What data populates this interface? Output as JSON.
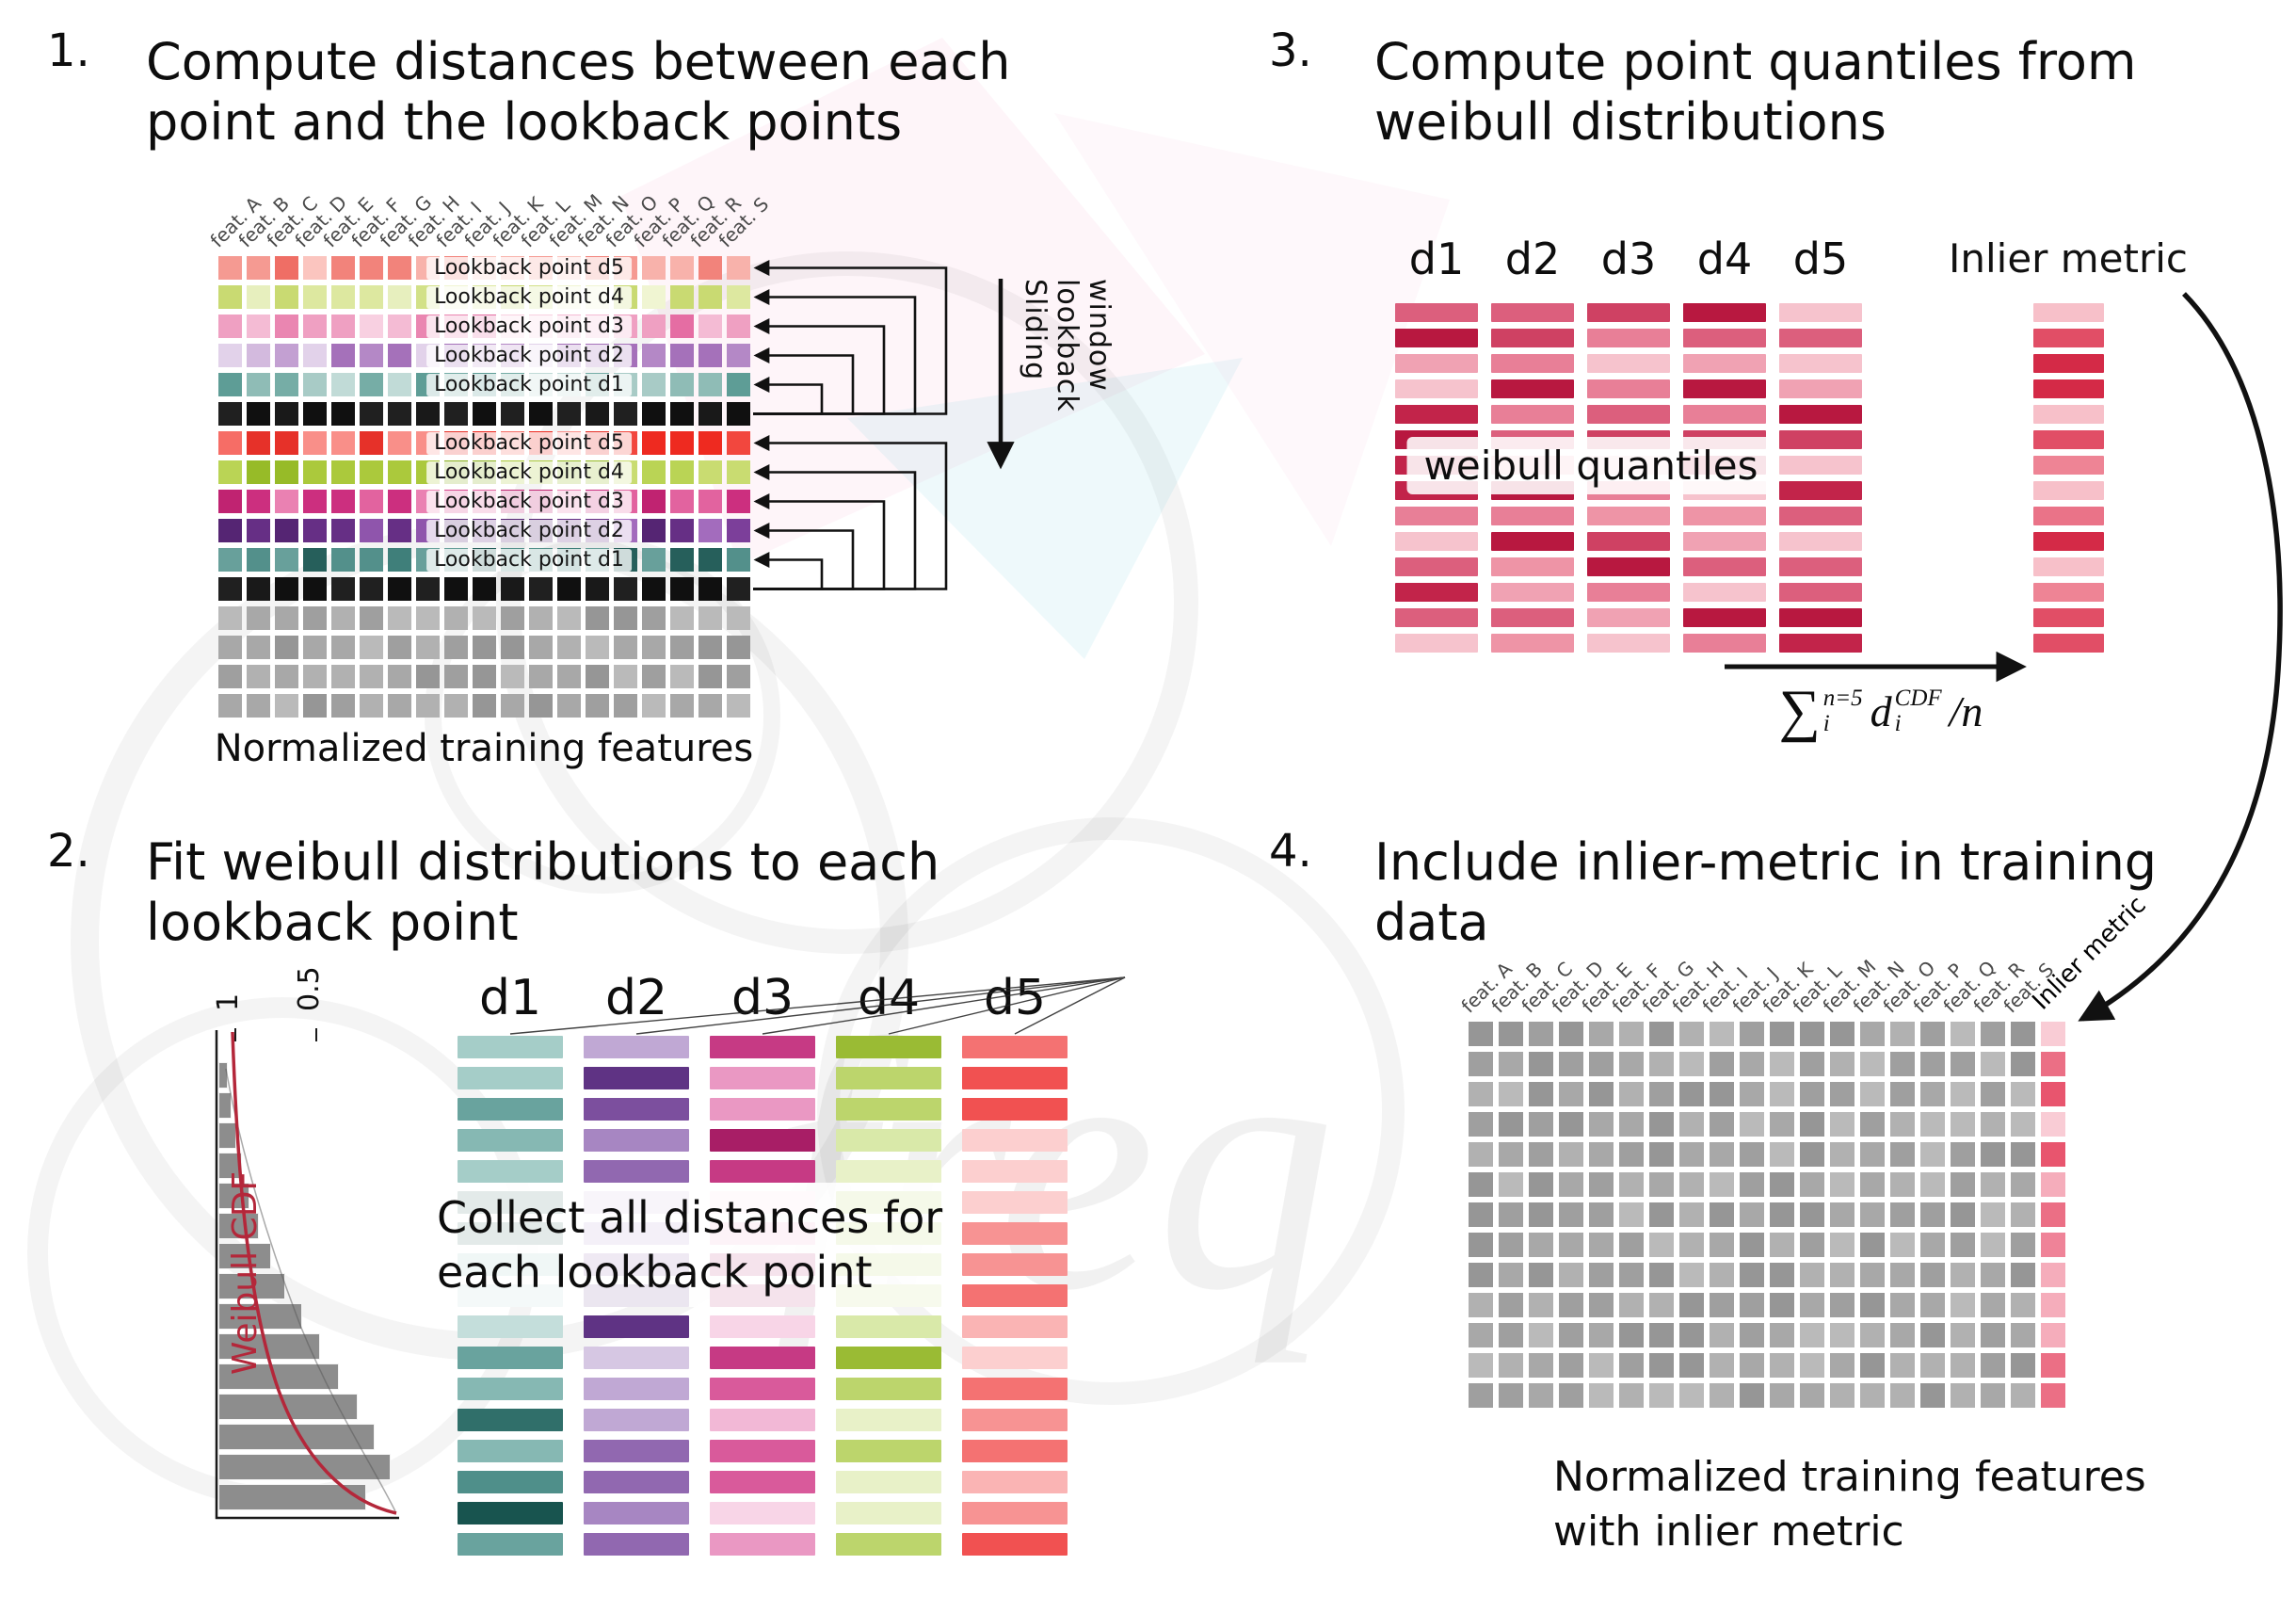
{
  "watermark": {
    "text": "freq"
  },
  "features": [
    "feat. A",
    "feat. B",
    "feat. C",
    "feat. D",
    "feat. E",
    "feat. F",
    "feat. G",
    "feat. H",
    "feat. I",
    "feat. J",
    "feat. K",
    "feat. L",
    "feat. M",
    "feat. N",
    "feat. O",
    "feat. P",
    "feat. Q",
    "feat. R",
    "feat. S"
  ],
  "lookback_labels": {
    "d1": "Lookback point d1",
    "d2": "Lookback point d2",
    "d3": "Lookback point d3",
    "d4": "Lookback point d4",
    "d5": "Lookback point d5"
  },
  "palettes": {
    "d5_light": [
      "#f59a92",
      "#f8b2ab",
      "#f2837b",
      "#fbc5bf",
      "#ef6e65"
    ],
    "d4_light": [
      "#dde8a0",
      "#e7efbe",
      "#d2e188",
      "#f0f5d2",
      "#c9da72"
    ],
    "d3_light": [
      "#efa0c2",
      "#f4bbd4",
      "#ea86b1",
      "#f8d0e1",
      "#e56da3"
    ],
    "d2_light": [
      "#c3a0d2",
      "#d3bade",
      "#b488c6",
      "#e2d2ea",
      "#a571ba"
    ],
    "d1_light": [
      "#8fbcb6",
      "#a8cbc6",
      "#76ada6",
      "#c1dbd7",
      "#5e9d96"
    ],
    "d5_strong": [
      "#f2473e",
      "#f66d66",
      "#ee2a20",
      "#f98f89",
      "#e63129"
    ],
    "d4_strong": [
      "#abc93c",
      "#bad455",
      "#97bb28",
      "#c9dc71",
      "#88af1f"
    ],
    "d3_strong": [
      "#d9468e",
      "#e2639f",
      "#cc2f7f",
      "#ea81b2",
      "#c02371"
    ],
    "d2_strong": [
      "#7c3f9a",
      "#8f55ac",
      "#662f85",
      "#a36cbd",
      "#552573"
    ],
    "d1_strong": [
      "#3f7f7a",
      "#53908b",
      "#2e6e69",
      "#68a09b",
      "#265f5b"
    ],
    "black": [
      "#191919",
      "#101010",
      "#202020"
    ],
    "gray": [
      "#a8a8a8",
      "#9f9f9f",
      "#b1b1b1",
      "#969696",
      "#bababa"
    ],
    "quantile_red": [
      "#c2244a",
      "#cf4163",
      "#dc5f7d",
      "#e87f97",
      "#f0a2b3",
      "#f6c3cd",
      "#b81840",
      "#ee94a6"
    ],
    "inlier_red": [
      "#e14e66",
      "#ea7388",
      "#f29aa9",
      "#d42a47",
      "#f7c0c9",
      "#ee8495"
    ],
    "p2_d1": [
      "#4f8f8a",
      "#69a39e",
      "#86b8b3",
      "#a5cdc8",
      "#306f6a",
      "#c4dedb",
      "#18544f"
    ],
    "p2_d2": [
      "#7c4f9e",
      "#9168b0",
      "#a786c2",
      "#c0a8d4",
      "#5f3384",
      "#d6c7e3"
    ],
    "p2_d3": [
      "#d95a9b",
      "#e279af",
      "#ea98c3",
      "#f2b8d6",
      "#c63a84",
      "#f8d5e7",
      "#a81e66"
    ],
    "p2_d4": [
      "#aecb4e",
      "#bcd56c",
      "#cadf8a",
      "#d9e9a9",
      "#9abb34",
      "#e8f1c8"
    ],
    "p2_d5": [
      "#f15151",
      "#f47272",
      "#f79393",
      "#fab4b4",
      "#ec3030",
      "#fccfcf",
      "#e01111"
    ],
    "p4_inlier": [
      "#e8556e",
      "#ef8398",
      "#f5adbb",
      "#d22c4a",
      "#f9ccd5",
      "#eb6f85"
    ]
  },
  "panel1": {
    "number": "1.",
    "title": [
      "Compute distances between each",
      "point and the lookback points"
    ],
    "sliding": [
      "Sliding",
      "lookback",
      "window"
    ],
    "caption": "Normalized training features",
    "row_order": [
      "d5_light",
      "d4_light",
      "d3_light",
      "d2_light",
      "d1_light",
      "black",
      "d5_strong",
      "d4_strong",
      "d3_strong",
      "d2_strong",
      "d1_strong",
      "black",
      "gray",
      "gray",
      "gray",
      "gray"
    ],
    "labeled_rows": {
      "0": "d5",
      "1": "d4",
      "2": "d3",
      "3": "d2",
      "4": "d1",
      "6": "d5",
      "7": "d4",
      "8": "d3",
      "9": "d2",
      "10": "d1"
    }
  },
  "panel2": {
    "number": "2.",
    "title": [
      "Fit weibull distributions to each",
      "lookback point"
    ],
    "columns": [
      "d1",
      "d2",
      "d3",
      "d4",
      "d5"
    ],
    "overlay": [
      "Collect all distances for",
      "each lookback point"
    ],
    "plot": {
      "ylabel": "Weibull CDF",
      "ticks": [
        "1",
        "0.5"
      ],
      "hist": [
        10,
        14,
        19,
        25,
        33,
        43,
        56,
        71,
        89,
        108,
        128,
        148,
        166,
        183,
        157
      ]
    }
  },
  "panel3": {
    "number": "3.",
    "title": [
      "Compute point quantiles from",
      "weibull distributions"
    ],
    "columns": [
      "d1",
      "d2",
      "d3",
      "d4",
      "d5"
    ],
    "overlay": "weibull quantiles",
    "inlier_label": "Inlier metric",
    "formula": {
      "sum": "∑",
      "sum_sup": "n=5",
      "sum_sub": "i",
      "term": "d",
      "term_sup": "CDF",
      "term_sub": "i",
      "tail": "/n"
    }
  },
  "panel4": {
    "number": "4.",
    "title": [
      "Include inlier-metric in training",
      "data"
    ],
    "inlier_header": "Inlier metric",
    "caption": [
      "Normalized training features",
      "with inlier metric"
    ]
  }
}
